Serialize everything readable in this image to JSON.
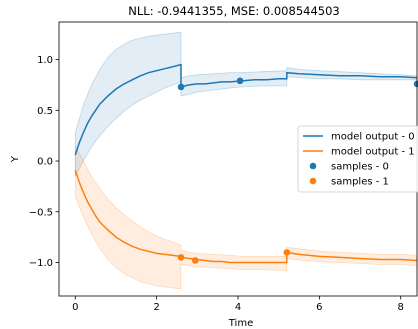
{
  "chart_data": {
    "type": "line",
    "title": "NLL: -0.9441355, MSE: 0.008544503",
    "xlabel": "Time",
    "ylabel": "Y",
    "xlim": [
      -0.4,
      8.4
    ],
    "ylim": [
      -1.33,
      1.37
    ],
    "xticks": [
      0,
      2,
      4,
      6,
      8
    ],
    "yticks": [
      -1.0,
      -0.5,
      0.0,
      0.5,
      1.0
    ],
    "xtick_labels": [
      "0",
      "2",
      "4",
      "6",
      "8"
    ],
    "ytick_labels": [
      "−1.0",
      "−0.5",
      "0.0",
      "0.5",
      "1.0"
    ],
    "legend_position": "center-right",
    "series": [
      {
        "name": "model output - 0",
        "kind": "line",
        "color": "#1f77b4",
        "x": [
          0.0,
          0.1,
          0.2,
          0.3,
          0.4,
          0.5,
          0.6,
          0.8,
          1.0,
          1.2,
          1.4,
          1.6,
          1.8,
          2.0,
          2.2,
          2.4,
          2.6,
          2.6,
          2.8,
          3.0,
          3.2,
          3.4,
          3.6,
          3.8,
          4.1,
          4.4,
          4.7,
          5.0,
          5.2,
          5.2,
          5.5,
          6.0,
          6.5,
          7.0,
          7.5,
          8.0,
          8.4
        ],
        "y": [
          0.06,
          0.18,
          0.28,
          0.37,
          0.44,
          0.5,
          0.56,
          0.64,
          0.71,
          0.76,
          0.8,
          0.84,
          0.87,
          0.89,
          0.91,
          0.93,
          0.95,
          0.73,
          0.75,
          0.76,
          0.76,
          0.77,
          0.78,
          0.78,
          0.79,
          0.8,
          0.8,
          0.81,
          0.81,
          0.87,
          0.86,
          0.85,
          0.84,
          0.84,
          0.83,
          0.83,
          0.82
        ]
      },
      {
        "name": "model output - 1",
        "kind": "line",
        "color": "#ff7f0e",
        "x": [
          0.0,
          0.1,
          0.2,
          0.3,
          0.4,
          0.5,
          0.6,
          0.8,
          1.0,
          1.2,
          1.4,
          1.6,
          1.8,
          2.0,
          2.2,
          2.4,
          2.6,
          2.6,
          2.8,
          3.0,
          3.2,
          3.4,
          3.6,
          3.8,
          4.1,
          4.4,
          4.7,
          5.0,
          5.2,
          5.2,
          5.5,
          6.0,
          6.5,
          7.0,
          7.5,
          8.0,
          8.4
        ],
        "y": [
          -0.09,
          -0.21,
          -0.31,
          -0.4,
          -0.47,
          -0.54,
          -0.6,
          -0.68,
          -0.75,
          -0.8,
          -0.84,
          -0.87,
          -0.89,
          -0.91,
          -0.92,
          -0.93,
          -0.94,
          -0.95,
          -0.96,
          -0.97,
          -0.98,
          -0.99,
          -0.99,
          -1.0,
          -1.0,
          -1.0,
          -1.0,
          -1.0,
          -1.0,
          -0.9,
          -0.92,
          -0.94,
          -0.95,
          -0.96,
          -0.97,
          -0.97,
          -0.98
        ]
      }
    ],
    "bands": [
      {
        "series": "model output - 0",
        "color": "#1f77b4",
        "x": [
          0.0,
          0.2,
          0.4,
          0.6,
          0.8,
          1.0,
          1.2,
          1.4,
          1.6,
          1.8,
          2.0,
          2.2,
          2.4,
          2.6,
          2.6,
          2.8,
          3.0,
          3.4,
          3.8,
          4.1,
          4.6,
          5.2,
          5.2,
          5.6,
          6.0,
          6.5,
          7.0,
          7.5,
          8.0,
          8.4
        ],
        "upper": [
          0.28,
          0.55,
          0.75,
          0.9,
          1.02,
          1.1,
          1.15,
          1.19,
          1.21,
          1.23,
          1.24,
          1.25,
          1.26,
          1.27,
          0.82,
          0.84,
          0.85,
          0.86,
          0.87,
          0.87,
          0.88,
          0.89,
          0.92,
          0.9,
          0.89,
          0.88,
          0.87,
          0.86,
          0.85,
          0.84
        ],
        "lower": [
          -0.15,
          0.0,
          0.14,
          0.25,
          0.34,
          0.42,
          0.49,
          0.55,
          0.6,
          0.64,
          0.68,
          0.72,
          0.75,
          0.78,
          0.64,
          0.66,
          0.68,
          0.7,
          0.72,
          0.73,
          0.74,
          0.74,
          0.83,
          0.82,
          0.81,
          0.81,
          0.8,
          0.8,
          0.8,
          0.8
        ]
      },
      {
        "series": "model output - 1",
        "color": "#ff7f0e",
        "x": [
          0.0,
          0.2,
          0.4,
          0.6,
          0.8,
          1.0,
          1.2,
          1.4,
          1.6,
          1.8,
          2.0,
          2.2,
          2.4,
          2.6,
          2.6,
          2.8,
          3.0,
          3.4,
          3.8,
          4.1,
          4.6,
          5.2,
          5.2,
          5.6,
          6.0,
          6.5,
          7.0,
          7.5,
          8.0,
          8.4
        ],
        "upper": [
          0.15,
          0.0,
          -0.15,
          -0.27,
          -0.37,
          -0.46,
          -0.53,
          -0.59,
          -0.65,
          -0.7,
          -0.74,
          -0.77,
          -0.8,
          -0.83,
          -0.88,
          -0.9,
          -0.91,
          -0.92,
          -0.93,
          -0.94,
          -0.94,
          -0.94,
          -0.85,
          -0.87,
          -0.89,
          -0.9,
          -0.91,
          -0.92,
          -0.92,
          -0.93
        ],
        "lower": [
          -0.35,
          -0.55,
          -0.72,
          -0.86,
          -0.97,
          -1.05,
          -1.11,
          -1.15,
          -1.19,
          -1.21,
          -1.23,
          -1.24,
          -1.25,
          -1.26,
          -1.02,
          -1.03,
          -1.04,
          -1.05,
          -1.06,
          -1.07,
          -1.07,
          -1.08,
          -0.96,
          -0.98,
          -0.99,
          -1.0,
          -1.01,
          -1.02,
          -1.02,
          -1.03
        ]
      }
    ],
    "scatter": [
      {
        "name": "samples - 0",
        "color": "#1f77b4",
        "x": [
          2.6,
          4.05,
          8.4
        ],
        "y": [
          0.73,
          0.79,
          0.76
        ]
      },
      {
        "name": "samples - 1",
        "color": "#ff7f0e",
        "x": [
          2.6,
          2.95,
          5.2
        ],
        "y": [
          -0.95,
          -0.98,
          -0.9
        ]
      }
    ]
  }
}
